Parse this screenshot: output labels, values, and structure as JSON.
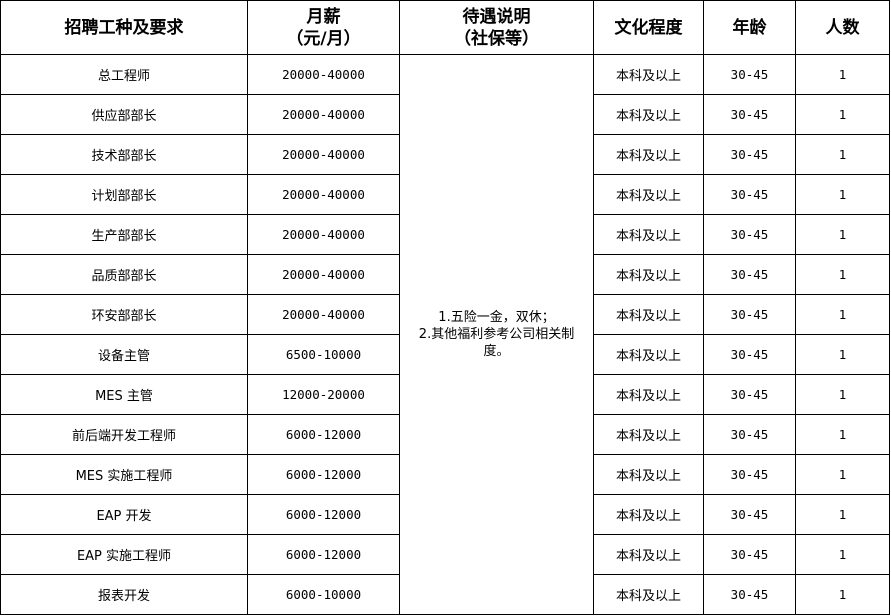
{
  "headers": {
    "position": "招聘工种及要求",
    "salary_line1": "月薪",
    "salary_line2": "（元/月）",
    "benefits_line1": "待遇说明",
    "benefits_line2": "（社保等）",
    "education": "文化程度",
    "age": "年龄",
    "count": "人数"
  },
  "benefits": {
    "line1": "1.五险一金，双休；",
    "line2": "2.其他福利参考公司相关制度。"
  },
  "rows": [
    {
      "position": "总工程师",
      "salary": "20000-40000",
      "education": "本科及以上",
      "age": "30-45",
      "count": "1"
    },
    {
      "position": "供应部部长",
      "salary": "20000-40000",
      "education": "本科及以上",
      "age": "30-45",
      "count": "1"
    },
    {
      "position": "技术部部长",
      "salary": "20000-40000",
      "education": "本科及以上",
      "age": "30-45",
      "count": "1"
    },
    {
      "position": "计划部部长",
      "salary": "20000-40000",
      "education": "本科及以上",
      "age": "30-45",
      "count": "1"
    },
    {
      "position": "生产部部长",
      "salary": "20000-40000",
      "education": "本科及以上",
      "age": "30-45",
      "count": "1"
    },
    {
      "position": "品质部部长",
      "salary": "20000-40000",
      "education": "本科及以上",
      "age": "30-45",
      "count": "1"
    },
    {
      "position": "环安部部长",
      "salary": "20000-40000",
      "education": "本科及以上",
      "age": "30-45",
      "count": "1"
    },
    {
      "position": "设备主管",
      "salary": "6500-10000",
      "education": "本科及以上",
      "age": "30-45",
      "count": "1"
    },
    {
      "position": "MES 主管",
      "salary": "12000-20000",
      "education": "本科及以上",
      "age": "30-45",
      "count": "1"
    },
    {
      "position": "前后端开发工程师",
      "salary": "6000-12000",
      "education": "本科及以上",
      "age": "30-45",
      "count": "1"
    },
    {
      "position": "MES 实施工程师",
      "salary": "6000-12000",
      "education": "本科及以上",
      "age": "30-45",
      "count": "1"
    },
    {
      "position": "EAP 开发",
      "salary": "6000-12000",
      "education": "本科及以上",
      "age": "30-45",
      "count": "1"
    },
    {
      "position": "EAP 实施工程师",
      "salary": "6000-12000",
      "education": "本科及以上",
      "age": "30-45",
      "count": "1"
    },
    {
      "position": "报表开发",
      "salary": "6000-10000",
      "education": "本科及以上",
      "age": "30-45",
      "count": "1"
    }
  ]
}
